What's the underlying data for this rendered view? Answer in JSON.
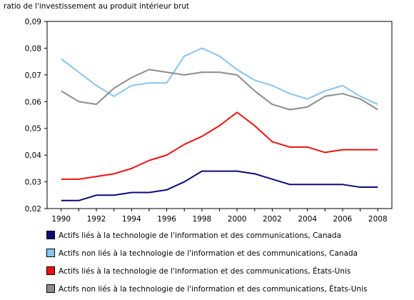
{
  "chart_data": {
    "type": "line",
    "ylabel": "ratio de l'investissement au produit intérieur brut",
    "x": [
      1990,
      1991,
      1992,
      1993,
      1994,
      1995,
      1996,
      1997,
      1998,
      1999,
      2000,
      2001,
      2002,
      2003,
      2004,
      2005,
      2006,
      2007,
      2008
    ],
    "xticks": [
      "1990",
      "1992",
      "1994",
      "1996",
      "1998",
      "2000",
      "2002",
      "2004",
      "2006",
      "2008"
    ],
    "xlim": [
      1989.2,
      2008.8
    ],
    "ylim": [
      0.02,
      0.09
    ],
    "yticks": [
      "0,02",
      "0,03",
      "0,04",
      "0,05",
      "0,06",
      "0,07",
      "0,08",
      "0,09"
    ],
    "grid": false,
    "legend_position": "bottom",
    "series": [
      {
        "name": "Actifs liés à la technologie de l'information et des communications, Canada",
        "color": "#0b0b7a",
        "values": [
          0.023,
          0.023,
          0.025,
          0.025,
          0.026,
          0.026,
          0.027,
          0.03,
          0.034,
          0.034,
          0.034,
          0.033,
          0.031,
          0.029,
          0.029,
          0.029,
          0.029,
          0.028,
          0.028
        ]
      },
      {
        "name": "Actifs non liés à la technologie de l'information et des communications, Canada",
        "color": "#87c4f2",
        "values": [
          0.076,
          0.071,
          0.066,
          0.062,
          0.066,
          0.067,
          0.067,
          0.077,
          0.08,
          0.077,
          0.072,
          0.068,
          0.066,
          0.063,
          0.061,
          0.064,
          0.066,
          0.062,
          0.059
        ]
      },
      {
        "name": "Actifs liés à la technologie de l'information et des communications, États-Unis",
        "color": "#ee1111",
        "values": [
          0.031,
          0.031,
          0.032,
          0.033,
          0.035,
          0.038,
          0.04,
          0.044,
          0.047,
          0.051,
          0.056,
          0.051,
          0.045,
          0.043,
          0.043,
          0.041,
          0.042,
          0.042,
          0.042
        ]
      },
      {
        "name": "Actifs non liés à la technologie de l'information et des communications, États-Unis",
        "color": "#8c8c8c",
        "values": [
          0.064,
          0.06,
          0.059,
          0.065,
          0.069,
          0.072,
          0.071,
          0.07,
          0.071,
          0.071,
          0.07,
          0.064,
          0.059,
          0.057,
          0.058,
          0.062,
          0.063,
          0.061,
          0.057
        ]
      }
    ]
  }
}
